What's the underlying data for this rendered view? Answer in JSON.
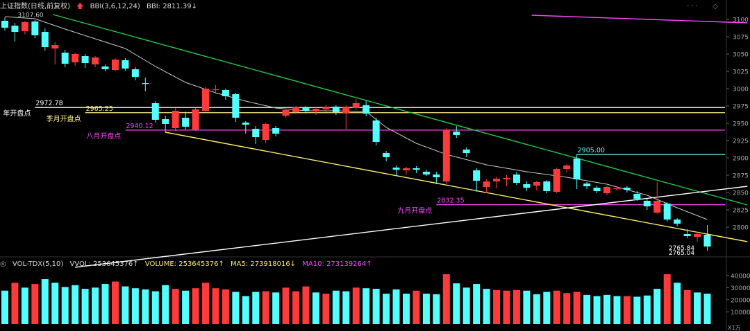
{
  "header": {
    "index_title": "上证指数(日线,前复权)",
    "bbi_label": "BBI(3,6,12,24)",
    "bbi_value": "BBI: 2811.39↓",
    "vol_title": "VOL-TDX(5,10)",
    "vvol": "VVOL: 253645376↑",
    "volume": "VOLUME: 253645376↑",
    "ma5": "MA5: 273918016↓",
    "ma10": "MA10: 273139264↑"
  },
  "colors": {
    "up": "#ff3a3a",
    "down": "#54ffff",
    "background": "#000000",
    "bbi_line": "#cccccc",
    "trend_green": "#22cc44",
    "trend_yellow": "#ffee66",
    "trend_white": "#ffffff",
    "magenta_line": "#ff44ff",
    "level_white": "#ffffff",
    "level_yellow": "#ffee88",
    "level_magenta": "#ff44ff",
    "level_cyan": "#66ffff"
  },
  "chart_data": {
    "type": "candlestick",
    "price_axis": {
      "min": 2762,
      "max": 3110,
      "ticks": [
        3100,
        3075,
        3050,
        3025,
        3000,
        2975,
        2950,
        2925,
        2900,
        2875,
        2850,
        2825,
        2800
      ]
    },
    "volume_axis": {
      "min": 0,
      "max": 45000,
      "ticks": [
        40000,
        30000,
        20000,
        10000
      ],
      "unit_label": "X1万"
    },
    "candles": [
      {
        "o": 3098,
        "c": 3088,
        "h": 3103,
        "l": 3084
      },
      {
        "o": 3091,
        "c": 3082,
        "h": 3095,
        "l": 3068
      },
      {
        "o": 3083,
        "c": 3096,
        "h": 3098,
        "l": 3078
      },
      {
        "o": 3097,
        "c": 3077,
        "h": 3099,
        "l": 3073
      },
      {
        "o": 3082,
        "c": 3060,
        "h": 3087,
        "l": 3055
      },
      {
        "o": 3058,
        "c": 3063,
        "h": 3067,
        "l": 3035
      },
      {
        "o": 3052,
        "c": 3036,
        "h": 3056,
        "l": 3031
      },
      {
        "o": 3038,
        "c": 3050,
        "h": 3052,
        "l": 3033
      },
      {
        "o": 3047,
        "c": 3037,
        "h": 3050,
        "l": 3030
      },
      {
        "o": 3035,
        "c": 3045,
        "h": 3047,
        "l": 3031
      },
      {
        "o": 3032,
        "c": 3028,
        "h": 3035,
        "l": 3025
      },
      {
        "o": 3027,
        "c": 3042,
        "h": 3044,
        "l": 3025
      },
      {
        "o": 3041,
        "c": 3029,
        "h": 3044,
        "l": 3026
      },
      {
        "o": 3028,
        "c": 3017,
        "h": 3031,
        "l": 3012
      },
      {
        "o": 3008,
        "c": 3007,
        "h": 3016,
        "l": 2996
      },
      {
        "o": 2979,
        "c": 2955,
        "h": 2982,
        "l": 2951
      },
      {
        "o": 2956,
        "c": 2949,
        "h": 2961,
        "l": 2936
      },
      {
        "o": 2943,
        "c": 2968,
        "h": 2972,
        "l": 2939
      },
      {
        "o": 2958,
        "c": 2945,
        "h": 2967,
        "l": 2941
      },
      {
        "o": 2941,
        "c": 2970,
        "h": 2972,
        "l": 2939
      },
      {
        "o": 2968,
        "c": 3000,
        "h": 3003,
        "l": 2966
      },
      {
        "o": 2999,
        "c": 2999,
        "h": 3005,
        "l": 2993
      },
      {
        "o": 2998,
        "c": 2989,
        "h": 3000,
        "l": 2984
      },
      {
        "o": 2992,
        "c": 2958,
        "h": 2994,
        "l": 2952
      },
      {
        "o": 2951,
        "c": 2948,
        "h": 2953,
        "l": 2935
      },
      {
        "o": 2942,
        "c": 2930,
        "h": 2946,
        "l": 2920
      },
      {
        "o": 2926,
        "c": 2949,
        "h": 2951,
        "l": 2921
      },
      {
        "o": 2943,
        "c": 2935,
        "h": 2946,
        "l": 2931
      },
      {
        "o": 2961,
        "c": 2969,
        "h": 2971,
        "l": 2958
      },
      {
        "o": 2966,
        "c": 2973,
        "h": 2975,
        "l": 2963
      },
      {
        "o": 2972,
        "c": 2968,
        "h": 2975,
        "l": 2964
      },
      {
        "o": 2967,
        "c": 2971,
        "h": 2973,
        "l": 2962
      },
      {
        "o": 2970,
        "c": 2974,
        "h": 2976,
        "l": 2966
      },
      {
        "o": 2974,
        "c": 2966,
        "h": 2976,
        "l": 2962
      },
      {
        "o": 2965,
        "c": 2974,
        "h": 2976,
        "l": 2941
      },
      {
        "o": 2972,
        "c": 2979,
        "h": 2985,
        "l": 2969
      },
      {
        "o": 2976,
        "c": 2964,
        "h": 2983,
        "l": 2960
      },
      {
        "o": 2954,
        "c": 2923,
        "h": 2958,
        "l": 2918
      },
      {
        "o": 2907,
        "c": 2901,
        "h": 2910,
        "l": 2895
      },
      {
        "o": 2886,
        "c": 2883,
        "h": 2889,
        "l": 2874
      },
      {
        "o": 2882,
        "c": 2885,
        "h": 2887,
        "l": 2876
      },
      {
        "o": 2885,
        "c": 2883,
        "h": 2888,
        "l": 2878
      },
      {
        "o": 2880,
        "c": 2876,
        "h": 2883,
        "l": 2874
      },
      {
        "o": 2876,
        "c": 2872,
        "h": 2880,
        "l": 2862
      },
      {
        "o": 2866,
        "c": 2940,
        "h": 2943,
        "l": 2862
      },
      {
        "o": 2938,
        "c": 2933,
        "h": 2946,
        "l": 2929
      },
      {
        "o": 2912,
        "c": 2907,
        "h": 2915,
        "l": 2901
      },
      {
        "o": 2882,
        "c": 2867,
        "h": 2885,
        "l": 2851
      },
      {
        "o": 2858,
        "c": 2866,
        "h": 2869,
        "l": 2849
      },
      {
        "o": 2866,
        "c": 2870,
        "h": 2873,
        "l": 2856
      },
      {
        "o": 2869,
        "c": 2871,
        "h": 2875,
        "l": 2859
      },
      {
        "o": 2876,
        "c": 2864,
        "h": 2880,
        "l": 2861
      },
      {
        "o": 2862,
        "c": 2857,
        "h": 2866,
        "l": 2852
      },
      {
        "o": 2860,
        "c": 2865,
        "h": 2867,
        "l": 2853
      },
      {
        "o": 2866,
        "c": 2852,
        "h": 2868,
        "l": 2849
      },
      {
        "o": 2851,
        "c": 2884,
        "h": 2886,
        "l": 2849
      },
      {
        "o": 2884,
        "c": 2889,
        "h": 2891,
        "l": 2879
      },
      {
        "o": 2899,
        "c": 2869,
        "h": 2905,
        "l": 2855
      },
      {
        "o": 2863,
        "c": 2859,
        "h": 2865,
        "l": 2855
      },
      {
        "o": 2857,
        "c": 2852,
        "h": 2860,
        "l": 2849
      },
      {
        "o": 2849,
        "c": 2858,
        "h": 2860,
        "l": 2846
      },
      {
        "o": 2856,
        "c": 2856,
        "h": 2859,
        "l": 2852
      },
      {
        "o": 2857,
        "c": 2854,
        "h": 2859,
        "l": 2850
      },
      {
        "o": 2848,
        "c": 2841,
        "h": 2852,
        "l": 2838
      },
      {
        "o": 2838,
        "c": 2830,
        "h": 2841,
        "l": 2825
      },
      {
        "o": 2821,
        "c": 2838,
        "h": 2865,
        "l": 2819
      },
      {
        "o": 2834,
        "c": 2811,
        "h": 2836,
        "l": 2808
      },
      {
        "o": 2811,
        "c": 2805,
        "h": 2813,
        "l": 2801
      },
      {
        "o": 2790,
        "c": 2787,
        "h": 2797,
        "l": 2784
      },
      {
        "o": 2786,
        "c": 2790,
        "h": 2793,
        "l": 2779
      },
      {
        "o": 2789,
        "c": 2772,
        "h": 2803,
        "l": 2766
      }
    ],
    "volume": [
      {
        "v": 27500,
        "up": false
      },
      {
        "v": 34000,
        "up": true
      },
      {
        "v": 30000,
        "up": false
      },
      {
        "v": 33000,
        "up": true
      },
      {
        "v": 37000,
        "up": false
      },
      {
        "v": 34000,
        "up": false
      },
      {
        "v": 30500,
        "up": false
      },
      {
        "v": 32000,
        "up": false
      },
      {
        "v": 29000,
        "up": false
      },
      {
        "v": 30000,
        "up": false
      },
      {
        "v": 33000,
        "up": false
      },
      {
        "v": 35000,
        "up": true
      },
      {
        "v": 31000,
        "up": false
      },
      {
        "v": 29500,
        "up": false
      },
      {
        "v": 28500,
        "up": false
      },
      {
        "v": 27000,
        "up": false
      },
      {
        "v": 32000,
        "up": false
      },
      {
        "v": 29000,
        "up": true
      },
      {
        "v": 27500,
        "up": false
      },
      {
        "v": 29500,
        "up": true
      },
      {
        "v": 34000,
        "up": true
      },
      {
        "v": 29500,
        "up": true
      },
      {
        "v": 28500,
        "up": true
      },
      {
        "v": 26500,
        "up": false
      },
      {
        "v": 23000,
        "up": false
      },
      {
        "v": 26500,
        "up": false
      },
      {
        "v": 27000,
        "up": true
      },
      {
        "v": 26000,
        "up": false
      },
      {
        "v": 30000,
        "up": true
      },
      {
        "v": 27000,
        "up": true
      },
      {
        "v": 31000,
        "up": true
      },
      {
        "v": 26000,
        "up": false
      },
      {
        "v": 25000,
        "up": true
      },
      {
        "v": 27500,
        "up": false
      },
      {
        "v": 27000,
        "up": false
      },
      {
        "v": 30000,
        "up": true
      },
      {
        "v": 29500,
        "up": false
      },
      {
        "v": 29000,
        "up": false
      },
      {
        "v": 25000,
        "up": false
      },
      {
        "v": 28500,
        "up": false
      },
      {
        "v": 25000,
        "up": false
      },
      {
        "v": 27500,
        "up": true
      },
      {
        "v": 25000,
        "up": false
      },
      {
        "v": 24500,
        "up": false
      },
      {
        "v": 41000,
        "up": true
      },
      {
        "v": 33500,
        "up": false
      },
      {
        "v": 30000,
        "up": false
      },
      {
        "v": 33000,
        "up": false
      },
      {
        "v": 29000,
        "up": false
      },
      {
        "v": 28000,
        "up": true
      },
      {
        "v": 27500,
        "up": true
      },
      {
        "v": 28000,
        "up": true
      },
      {
        "v": 27500,
        "up": false
      },
      {
        "v": 24500,
        "up": false
      },
      {
        "v": 26500,
        "up": false
      },
      {
        "v": 27500,
        "up": true
      },
      {
        "v": 25500,
        "up": true
      },
      {
        "v": 26500,
        "up": true
      },
      {
        "v": 24000,
        "up": false
      },
      {
        "v": 23000,
        "up": false
      },
      {
        "v": 24000,
        "up": false
      },
      {
        "v": 23000,
        "up": false
      },
      {
        "v": 23000,
        "up": true
      },
      {
        "v": 22500,
        "up": false
      },
      {
        "v": 23500,
        "up": false
      },
      {
        "v": 29000,
        "up": false
      },
      {
        "v": 41000,
        "up": true
      },
      {
        "v": 34000,
        "up": false
      },
      {
        "v": 28000,
        "up": true
      },
      {
        "v": 26000,
        "up": false
      },
      {
        "v": 25000,
        "up": false
      }
    ],
    "bbi_line": [
      [
        0,
        3104
      ],
      [
        3,
        3101
      ],
      [
        6,
        3086
      ],
      [
        9,
        3072
      ],
      [
        12,
        3058
      ],
      [
        15,
        3032
      ],
      [
        18,
        3009
      ],
      [
        21,
        2994
      ],
      [
        24,
        2982
      ],
      [
        27,
        2972
      ],
      [
        30,
        2968
      ],
      [
        33,
        2968
      ],
      [
        36,
        2967
      ],
      [
        38,
        2944
      ],
      [
        41,
        2921
      ],
      [
        44,
        2905
      ],
      [
        48,
        2890
      ],
      [
        52,
        2880
      ],
      [
        56,
        2872
      ],
      [
        60,
        2862
      ],
      [
        64,
        2846
      ],
      [
        67,
        2828
      ],
      [
        70,
        2811
      ]
    ],
    "levels": [
      {
        "label": "年开盘点",
        "value_text": "2972.78",
        "price": 2972.78,
        "color": "level_white",
        "start": 3
      },
      {
        "label": "季月开盘点",
        "value_text": "2965.25",
        "price": 2965.25,
        "color": "level_yellow",
        "start": 8
      },
      {
        "label": "八月开盘点",
        "value_text": "2940.12",
        "price": 2940.12,
        "color": "level_magenta",
        "start": 12
      },
      {
        "label": "",
        "value_text": "2905.00",
        "price": 2905.0,
        "color": "level_cyan",
        "start": 57
      },
      {
        "label": "九月开盘点",
        "value_text": "2832.35",
        "price": 2832.35,
        "color": "level_magenta",
        "start": 43
      }
    ],
    "trendlines": [
      {
        "name": "green",
        "from": [
          4.8,
          3107
        ],
        "to": [
          74,
          2832
        ]
      },
      {
        "name": "yellow",
        "from": [
          16,
          2937
        ],
        "to": [
          74,
          2779
        ]
      },
      {
        "name": "white",
        "from": [
          7,
          2742
        ],
        "to": [
          74,
          2859
        ]
      },
      {
        "name": "magenta",
        "from": [
          52.5,
          3106
        ],
        "to": [
          74,
          3095
        ]
      }
    ],
    "annotations": [
      {
        "text": "3107.60",
        "index": 1,
        "price": 3107.6
      },
      {
        "text": "2765.04",
        "index": 69,
        "price": 2764
      },
      {
        "text": "2765.84",
        "index": 69,
        "price": 2771
      }
    ]
  }
}
